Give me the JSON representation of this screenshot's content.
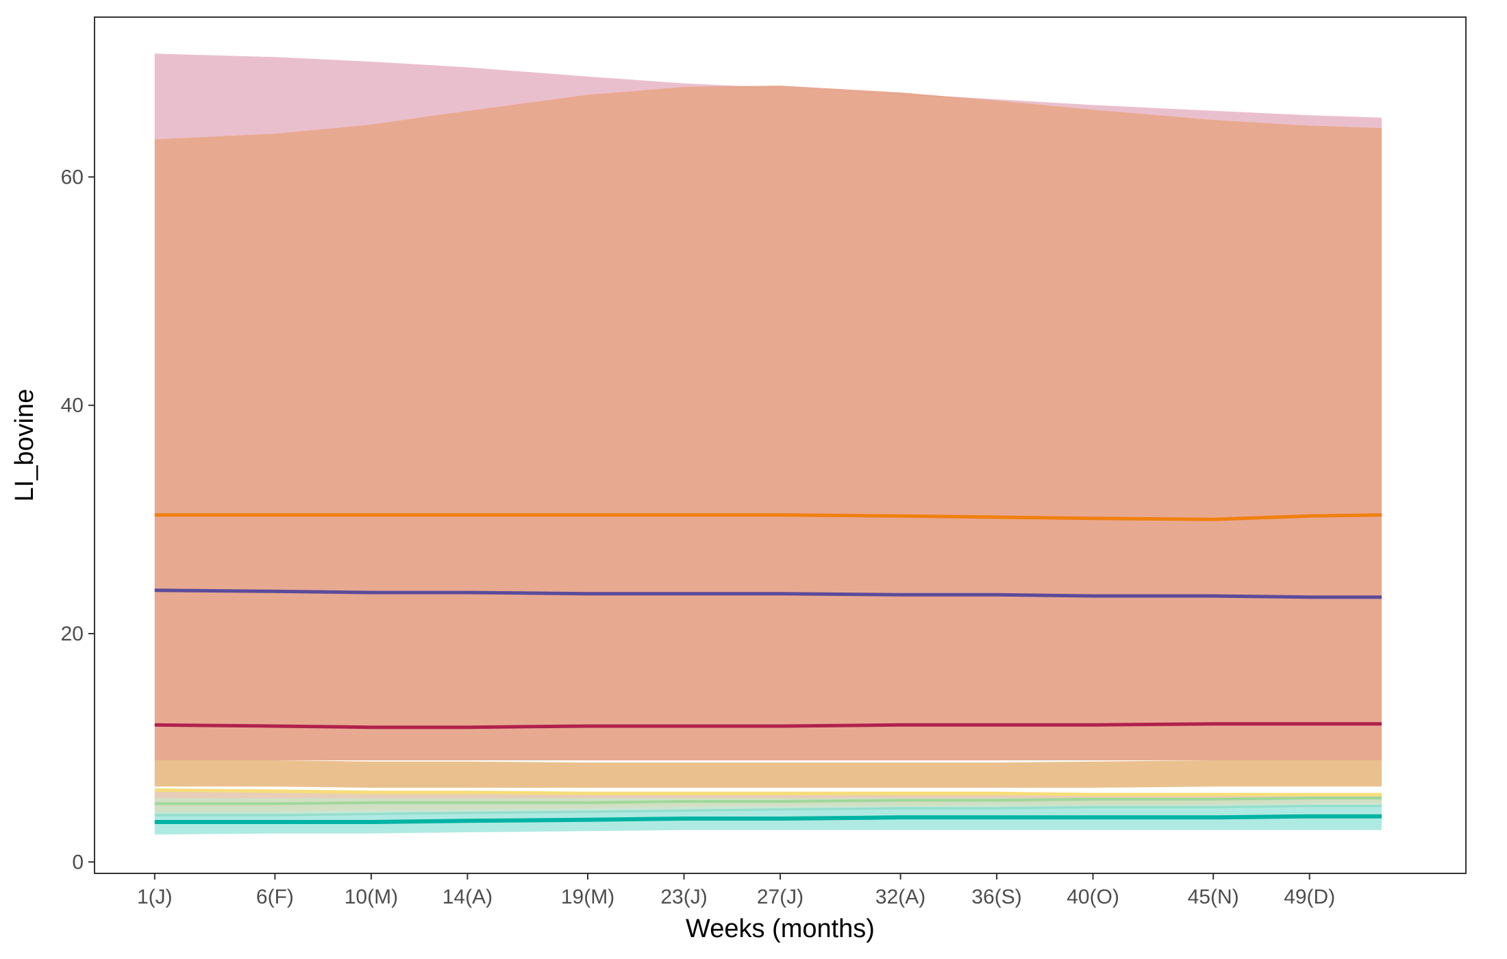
{
  "chart_data": {
    "type": "area",
    "xlabel": "Weeks (months)",
    "ylabel": "LI_bovine",
    "xlim": [
      -1.5,
      55.5
    ],
    "ylim": [
      -1,
      74
    ],
    "x_ticks": [
      {
        "value": 1,
        "label": "1(J)"
      },
      {
        "value": 6,
        "label": "6(F)"
      },
      {
        "value": 10,
        "label": "10(M)"
      },
      {
        "value": 14,
        "label": "14(A)"
      },
      {
        "value": 19,
        "label": "19(M)"
      },
      {
        "value": 23,
        "label": "23(J)"
      },
      {
        "value": 27,
        "label": "27(J)"
      },
      {
        "value": 32,
        "label": "32(A)"
      },
      {
        "value": 36,
        "label": "36(S)"
      },
      {
        "value": 40,
        "label": "40(O)"
      },
      {
        "value": 45,
        "label": "45(N)"
      },
      {
        "value": 49,
        "label": "49(D)"
      }
    ],
    "y_ticks": [
      0,
      20,
      40,
      60
    ],
    "grid": false,
    "x": [
      1,
      6,
      10,
      14,
      19,
      23,
      27,
      32,
      36,
      40,
      45,
      49,
      52
    ],
    "bands": [
      {
        "color": "#d98ba4",
        "opacity": 0.55,
        "lower": [
          63.3,
          63.8,
          64.6,
          65.8,
          67.2,
          67.9,
          67.8,
          67.2,
          66.7,
          65.9,
          65.0,
          64.5,
          64.3
        ],
        "upper": [
          70.8,
          70.5,
          70.1,
          69.6,
          68.8,
          68.2,
          67.8,
          67.3,
          66.8,
          66.3,
          65.8,
          65.4,
          65.2
        ]
      },
      {
        "color": "#e6a085",
        "opacity": 0.9,
        "lower": [
          8.9,
          8.9,
          8.9,
          8.9,
          8.9,
          8.9,
          8.9,
          8.9,
          8.9,
          8.9,
          8.9,
          8.9,
          8.9
        ],
        "upper": [
          63.3,
          63.8,
          64.6,
          65.8,
          67.2,
          67.9,
          68.0,
          67.4,
          66.7,
          65.9,
          65.0,
          64.5,
          64.3
        ]
      },
      {
        "color": "#e9be88",
        "opacity": 0.95,
        "lower": [
          6.6,
          6.6,
          6.5,
          6.5,
          6.5,
          6.5,
          6.5,
          6.5,
          6.5,
          6.5,
          6.6,
          6.6,
          6.6
        ],
        "upper": [
          8.9,
          8.9,
          8.8,
          8.8,
          8.7,
          8.7,
          8.7,
          8.7,
          8.7,
          8.8,
          8.9,
          8.9,
          8.9
        ]
      },
      {
        "color": "#e5c8b0",
        "opacity": 0.9,
        "lower": [
          5.6,
          5.6,
          5.6,
          5.6,
          5.6,
          5.6,
          5.6,
          5.6,
          5.6,
          5.6,
          5.6,
          5.6,
          5.6
        ],
        "upper": [
          6.3,
          6.2,
          6.1,
          6.0,
          6.0,
          6.0,
          6.0,
          6.0,
          6.0,
          6.0,
          6.0,
          6.0,
          6.0
        ]
      },
      {
        "color": "#c9d9b9",
        "opacity": 0.85,
        "lower": [
          4.4,
          4.4,
          4.5,
          4.6,
          4.7,
          4.8,
          4.9,
          4.9,
          5.0,
          5.0,
          5.0,
          5.1,
          5.1
        ],
        "upper": [
          5.6,
          5.6,
          5.6,
          5.6,
          5.6,
          5.6,
          5.6,
          5.6,
          5.6,
          5.6,
          5.6,
          5.6,
          5.6
        ]
      },
      {
        "color": "#b9e0c9",
        "opacity": 0.8,
        "lower": [
          4.0,
          4.0,
          4.1,
          4.2,
          4.3,
          4.4,
          4.5,
          4.6,
          4.6,
          4.7,
          4.7,
          4.8,
          4.8
        ],
        "upper": [
          4.4,
          4.4,
          4.5,
          4.6,
          4.7,
          4.8,
          4.9,
          4.9,
          5.0,
          5.0,
          5.0,
          5.1,
          5.1
        ]
      },
      {
        "color": "#5fd6c6",
        "opacity": 0.5,
        "lower": [
          2.4,
          2.5,
          2.5,
          2.6,
          2.7,
          2.8,
          2.8,
          2.8,
          2.8,
          2.8,
          2.8,
          2.8,
          2.8
        ],
        "upper": [
          4.2,
          4.2,
          4.3,
          4.4,
          4.5,
          4.6,
          4.7,
          4.8,
          4.8,
          4.9,
          4.9,
          5.0,
          5.0
        ]
      }
    ],
    "series": [
      {
        "color": "#f0800f",
        "width": 5,
        "values": [
          30.4,
          30.4,
          30.4,
          30.4,
          30.4,
          30.4,
          30.4,
          30.3,
          30.2,
          30.1,
          30.0,
          30.3,
          30.4
        ]
      },
      {
        "color": "#5b4b9a",
        "width": 5,
        "values": [
          23.8,
          23.7,
          23.6,
          23.6,
          23.5,
          23.5,
          23.5,
          23.4,
          23.4,
          23.3,
          23.3,
          23.2,
          23.2
        ]
      },
      {
        "color": "#b0214c",
        "width": 5,
        "values": [
          12.0,
          11.9,
          11.8,
          11.8,
          11.9,
          11.9,
          11.9,
          12.0,
          12.0,
          12.0,
          12.1,
          12.1,
          12.1
        ]
      },
      {
        "color": "#f6dd7a",
        "width": 5,
        "values": [
          6.3,
          6.2,
          6.1,
          6.1,
          6.0,
          6.0,
          6.0,
          6.0,
          6.0,
          5.9,
          5.9,
          5.9,
          5.9
        ]
      },
      {
        "color": "#9ed89a",
        "width": 4,
        "values": [
          5.1,
          5.1,
          5.2,
          5.2,
          5.2,
          5.3,
          5.3,
          5.4,
          5.4,
          5.5,
          5.5,
          5.6,
          5.6
        ]
      },
      {
        "color": "#00b3a4",
        "width": 6,
        "values": [
          3.5,
          3.5,
          3.5,
          3.6,
          3.7,
          3.8,
          3.8,
          3.9,
          3.9,
          3.9,
          3.9,
          4.0,
          4.0
        ]
      }
    ]
  }
}
